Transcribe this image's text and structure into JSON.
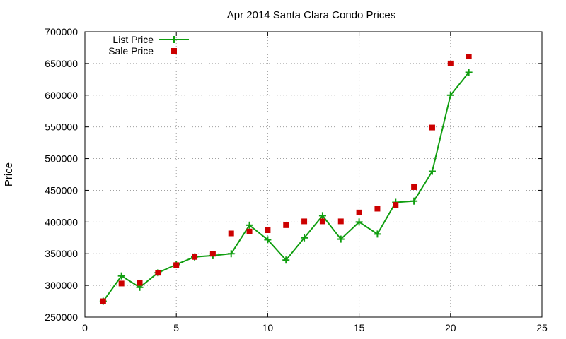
{
  "chart_data": {
    "type": "line",
    "title": "Apr 2014 Santa Clara Condo Prices",
    "xlabel": "",
    "ylabel": "Price",
    "xlim": [
      0,
      25
    ],
    "ylim": [
      250000,
      700000
    ],
    "xticks": [
      "0",
      "5",
      "10",
      "15",
      "20",
      "25"
    ],
    "yticks": [
      "250000",
      "300000",
      "350000",
      "400000",
      "450000",
      "500000",
      "550000",
      "600000",
      "650000",
      "700000"
    ],
    "grid": true,
    "legend_position": "top-left",
    "series": [
      {
        "name": "List Price",
        "kind": "line-points",
        "color": "#109e10",
        "x": [
          1,
          2,
          3,
          4,
          5,
          6,
          7,
          8,
          9,
          10,
          11,
          12,
          13,
          14,
          15,
          16,
          17,
          18,
          19,
          20,
          21
        ],
        "y": [
          275000,
          315000,
          297000,
          320000,
          333000,
          345000,
          347000,
          350000,
          395000,
          372000,
          340000,
          375000,
          410000,
          373000,
          400000,
          381000,
          431000,
          433000,
          480000,
          600000,
          636000
        ]
      },
      {
        "name": "Sale Price",
        "kind": "points",
        "color": "#cc0000",
        "x": [
          1,
          2,
          3,
          4,
          5,
          6,
          7,
          8,
          9,
          10,
          11,
          12,
          13,
          14,
          15,
          16,
          17,
          18,
          19,
          20,
          21
        ],
        "y": [
          275000,
          303000,
          304000,
          320000,
          332000,
          345000,
          350000,
          382000,
          385000,
          387000,
          395000,
          401000,
          401000,
          401000,
          415000,
          421000,
          427000,
          455000,
          549000,
          650000,
          661000
        ]
      }
    ]
  }
}
